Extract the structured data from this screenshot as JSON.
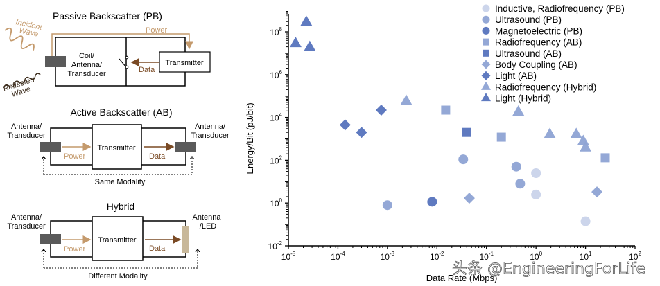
{
  "diagrams": {
    "passive": {
      "title": "Passive Backscatter (PB)",
      "incident_label_1": "Incident",
      "incident_label_2": "Wave",
      "reflected_label_1": "Reflected",
      "reflected_label_2": "Wave",
      "power_label": "Power",
      "data_label": "Data",
      "coil_label_1": "Coil/",
      "coil_label_2": "Antenna/",
      "coil_label_3": "Transducer",
      "transmitter_label": "Transmitter"
    },
    "active": {
      "title": "Active Backscatter (AB)",
      "left_label_1": "Antenna/",
      "left_label_2": "Transducer",
      "right_label_1": "Antenna/",
      "right_label_2": "Transducer",
      "transmitter_label": "Transmitter",
      "power_label": "Power",
      "data_label": "Data",
      "modality_label": "Same Modality"
    },
    "hybrid": {
      "title": "Hybrid",
      "left_label_1": "Antenna/",
      "left_label_2": "Transducer",
      "right_label_1": "Antenna",
      "right_label_2": "/LED",
      "transmitter_label": "Transmitter",
      "power_label": "Power",
      "data_label": "Data",
      "modality_label": "Different Modality"
    },
    "colors": {
      "power": "#c49a6c",
      "data": "#7a4a24",
      "block": "#5a5a5a",
      "led": "#c8b89a"
    }
  },
  "chart_data": {
    "type": "scatter",
    "title": "",
    "xlabel": "Data Rate (Mbps)",
    "ylabel": "Energy/Bit (pJ/bit)",
    "xscale": "log",
    "yscale": "log",
    "xlim": [
      1e-05,
      100
    ],
    "ylim": [
      0.01,
      1000000000.0
    ],
    "x_ticks": [
      "10^-5",
      "10^-4",
      "10^-3",
      "10^-2",
      "10^-1",
      "10^0",
      "10^1",
      "10^2"
    ],
    "y_ticks": [
      "10^-2",
      "10^0",
      "10^2",
      "10^4",
      "10^6",
      "10^8"
    ],
    "grid": false,
    "legend_position": "top-right",
    "series": [
      {
        "name": "Inductive, Radiofrequency (PB)",
        "marker": "circle",
        "color": "#c9d3ea",
        "points": [
          [
            1.0,
            25
          ],
          [
            1.0,
            2.5
          ],
          [
            10,
            0.14
          ]
        ]
      },
      {
        "name": "Ultrasound (PB)",
        "marker": "circle",
        "color": "#8ea3d4",
        "points": [
          [
            0.001,
            0.8
          ],
          [
            0.034,
            110
          ],
          [
            0.4,
            50
          ],
          [
            0.48,
            8
          ]
        ]
      },
      {
        "name": "Magnetoelectric (PB)",
        "marker": "circle",
        "color": "#5673bd",
        "points": [
          [
            0.008,
            1.15
          ]
        ]
      },
      {
        "name": "Radiofrequency (AB)",
        "marker": "square",
        "color": "#8ea3d4",
        "points": [
          [
            0.015,
            22000
          ],
          [
            0.2,
            1200
          ],
          [
            25,
            130
          ]
        ]
      },
      {
        "name": "Ultrasound (AB)",
        "marker": "square",
        "color": "#5673bd",
        "points": [
          [
            0.04,
            2000
          ]
        ]
      },
      {
        "name": "Body Coupling (AB)",
        "marker": "diamond",
        "color": "#8ea3d4",
        "points": [
          [
            0.045,
            1.7
          ],
          [
            17,
            3.3
          ]
        ]
      },
      {
        "name": "Light (AB)",
        "marker": "diamond",
        "color": "#5673bd",
        "points": [
          [
            0.00014,
            4500
          ],
          [
            0.0003,
            2000
          ],
          [
            0.00075,
            22000
          ]
        ]
      },
      {
        "name": "Radiofrequency (Hybrid)",
        "marker": "triangle",
        "color": "#8ea3d4",
        "points": [
          [
            0.0024,
            60000
          ],
          [
            0.44,
            19000
          ],
          [
            1.9,
            1700
          ],
          [
            6.5,
            1700
          ],
          [
            9,
            800
          ],
          [
            10,
            400
          ]
        ]
      },
      {
        "name": "Light (Hybrid)",
        "marker": "triangle",
        "color": "#5673bd",
        "points": [
          [
            2.3e-05,
            300000000
          ],
          [
            1.4e-05,
            30000000
          ],
          [
            2.7e-05,
            20000000
          ]
        ]
      }
    ]
  },
  "watermark": "头条 @EngineeringForLife"
}
